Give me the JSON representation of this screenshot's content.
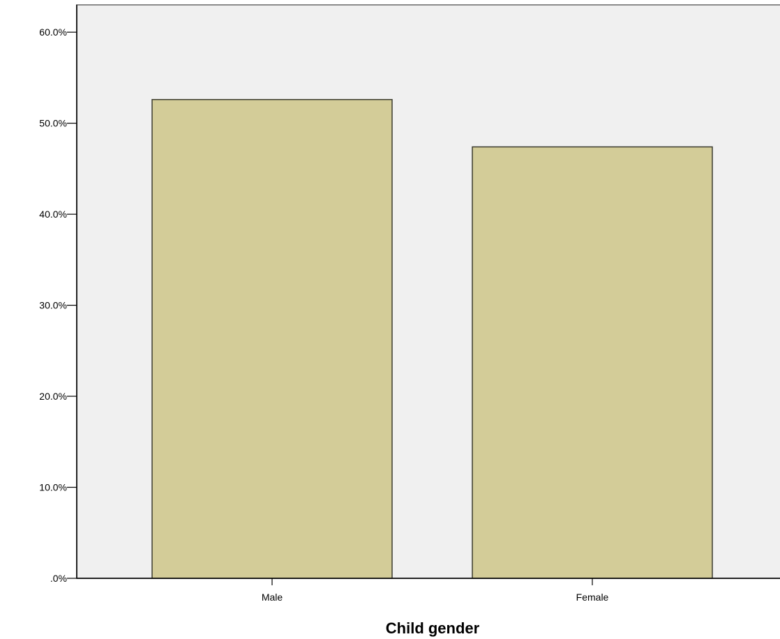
{
  "chart_data": {
    "type": "bar",
    "categories": [
      "Male",
      "Female"
    ],
    "values": [
      52.6,
      47.4
    ],
    "value_format": "percent",
    "title": "",
    "xlabel": "Child gender",
    "ylabel": "",
    "ylim": [
      0,
      63
    ],
    "y_ticks": [
      {
        "value": 0,
        "label": ".0%"
      },
      {
        "value": 10,
        "label": "10.0%"
      },
      {
        "value": 20,
        "label": "20.0%"
      },
      {
        "value": 30,
        "label": "30.0%"
      },
      {
        "value": 40,
        "label": "40.0%"
      },
      {
        "value": 50,
        "label": "50.0%"
      },
      {
        "value": 60,
        "label": "60.0%"
      }
    ],
    "grid": false,
    "legend": "none",
    "colors": {
      "bar_fill": "#d3cc98",
      "bar_stroke": "#3a3a2e",
      "plot_background": "#f0f0f0",
      "frame": "#8a8a8a",
      "axis": "#000000"
    }
  }
}
